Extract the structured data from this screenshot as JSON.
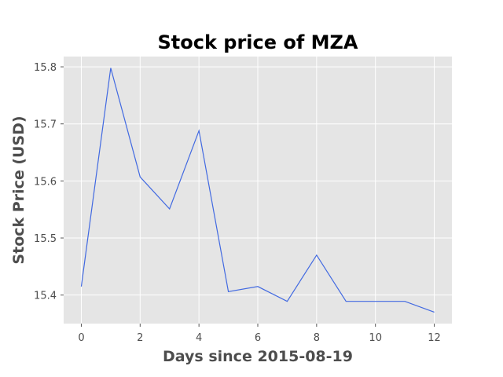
{
  "chart_data": {
    "type": "line",
    "title": "Stock price of MZA",
    "xlabel": "Days since 2015-08-19",
    "ylabel": "Stock Price (USD)",
    "series": [
      {
        "x": [
          0,
          1,
          2,
          3,
          4,
          5,
          6,
          7,
          8,
          9,
          10,
          11,
          12
        ],
        "values": [
          15.415,
          15.798,
          15.607,
          15.551,
          15.688,
          15.406,
          15.415,
          15.389,
          15.47,
          15.389,
          15.389,
          15.389,
          15.37
        ]
      }
    ],
    "xlim": [
      -0.6,
      12.6
    ],
    "ylim": [
      15.35,
      15.818
    ],
    "xticks": [
      0,
      2,
      4,
      6,
      8,
      10,
      12
    ],
    "yticks": [
      15.4,
      15.5,
      15.6,
      15.7,
      15.8
    ],
    "xtick_labels": [
      "0",
      "2",
      "4",
      "6",
      "8",
      "10",
      "12"
    ],
    "ytick_labels": [
      "15.4",
      "15.5",
      "15.6",
      "15.7",
      "15.8"
    ],
    "grid": true,
    "colors": {
      "line": "#4169e1",
      "plot_bg": "#e5e5e5",
      "grid": "#ffffff"
    }
  }
}
